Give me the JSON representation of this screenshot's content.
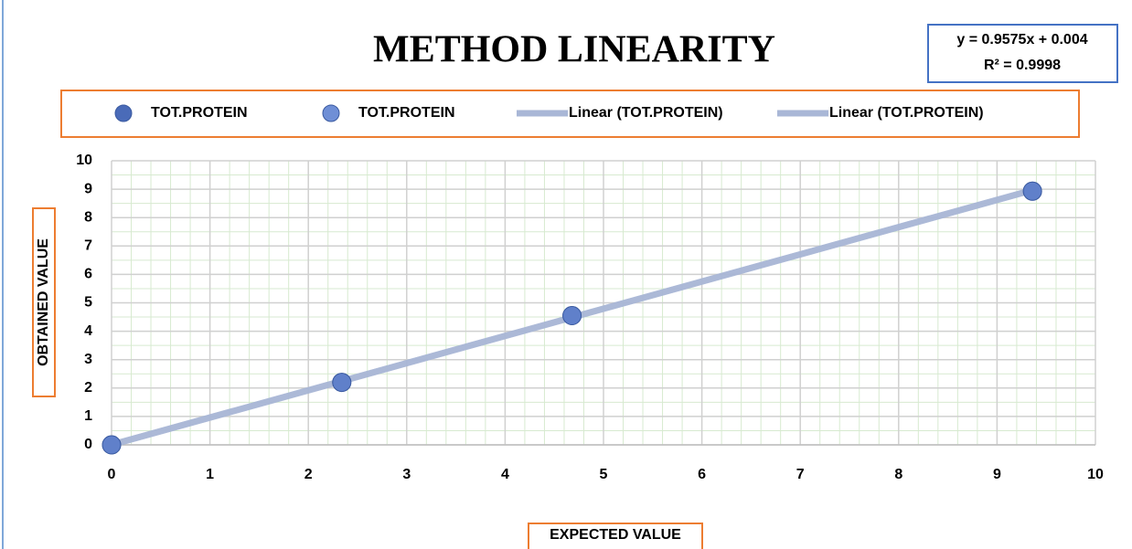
{
  "chart_data": {
    "type": "scatter",
    "title": "METHOD LINEARITY",
    "x_label": "EXPECTED VALUE",
    "y_label": "OBTAINED VALUE",
    "x": [
      0,
      2.34,
      4.68,
      9.36
    ],
    "series": [
      {
        "name": "TOT.PROTEIN",
        "color": "#4a6bb8",
        "values": [
          0,
          2.2,
          4.55,
          8.93
        ],
        "trendline_name": "Linear (TOT.PROTEIN)"
      },
      {
        "name": "TOT.PROTEIN",
        "color": "#6f8fd6",
        "values": [
          0,
          2.2,
          4.55,
          8.93
        ],
        "trendline_name": "Linear (TOT.PROTEIN)"
      }
    ],
    "trendline": {
      "slope": 0.9575,
      "intercept": 0.004,
      "equation": "y = 0.9575x + 0.004",
      "r2_label": "R² = 0.9998",
      "color": "#a9b7d6"
    },
    "xlim": [
      0,
      10
    ],
    "ylim": [
      0,
      10
    ],
    "xticks": [
      0,
      1,
      2,
      3,
      4,
      5,
      6,
      7,
      8,
      9,
      10
    ],
    "yticks": [
      0,
      1,
      2,
      3,
      4,
      5,
      6,
      7,
      8,
      9,
      10
    ],
    "grid": true,
    "minor_grid": true,
    "x_minor_step": 0.2,
    "y_minor_step": 0.5,
    "legend": "top"
  }
}
